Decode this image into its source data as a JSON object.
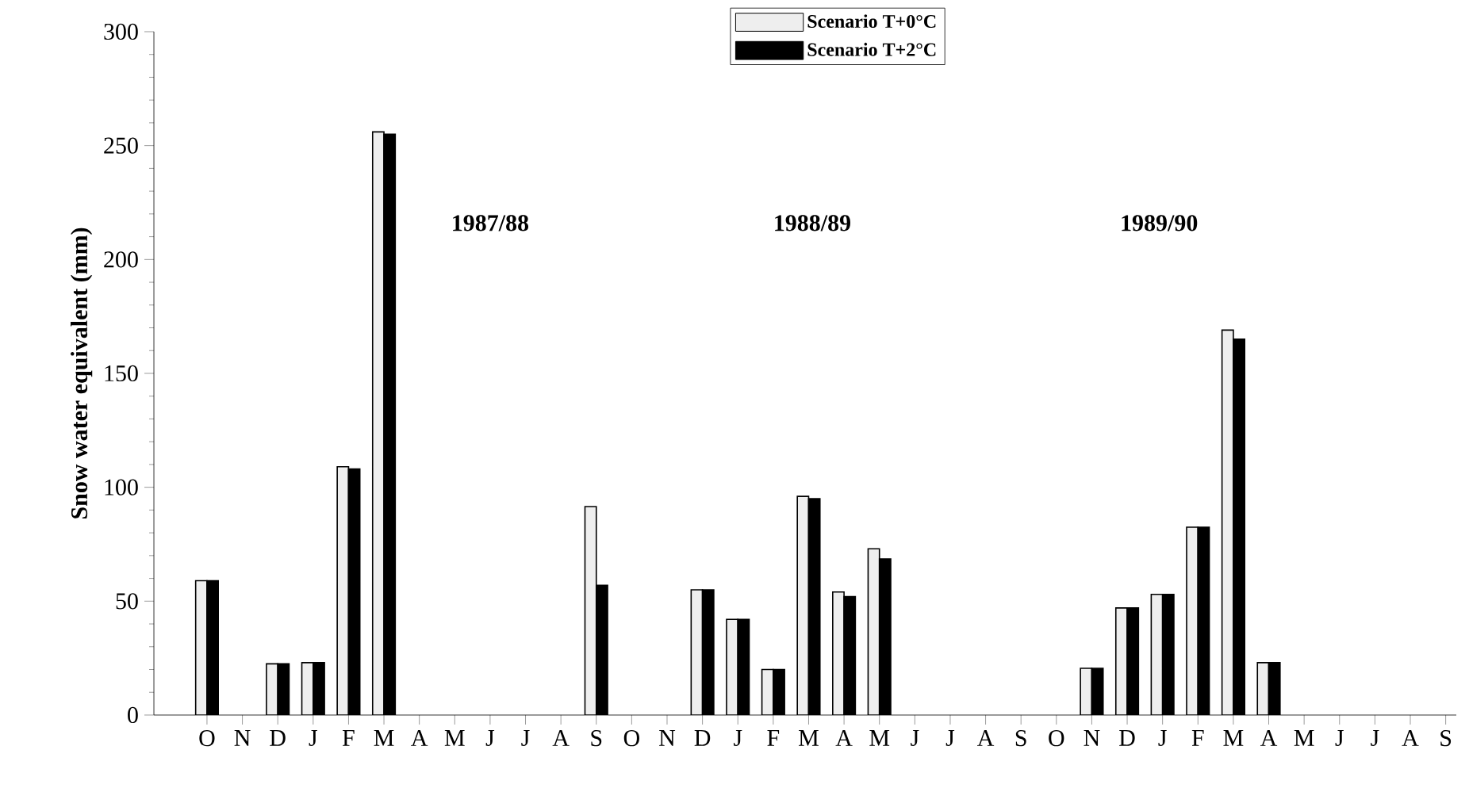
{
  "chart_data": {
    "type": "bar",
    "ylabel": "Snow water equivalent (mm)",
    "categories": [
      "O",
      "N",
      "D",
      "J",
      "F",
      "M",
      "A",
      "M",
      "J",
      "J",
      "A",
      "S",
      "O",
      "N",
      "D",
      "J",
      "F",
      "M",
      "A",
      "M",
      "J",
      "J",
      "A",
      "S",
      "O",
      "N",
      "D",
      "J",
      "F",
      "M",
      "A",
      "M",
      "J",
      "J",
      "A",
      "S"
    ],
    "series": [
      {
        "name": "Scenario T+0°C",
        "color": "#eeeeee",
        "values": [
          59,
          0,
          22.5,
          23,
          109,
          256,
          0,
          0,
          0,
          0,
          0,
          91.5,
          0,
          0,
          55,
          42,
          20,
          96,
          54,
          73,
          0,
          0,
          0,
          0,
          0,
          20.5,
          47,
          53,
          82.5,
          169,
          23,
          0,
          0,
          0,
          0,
          0
        ]
      },
      {
        "name": "Scenario T+2°C",
        "color": "#000000",
        "values": [
          59,
          0,
          22.5,
          23,
          108,
          255,
          0,
          0,
          0,
          0,
          0,
          57,
          0,
          0,
          55,
          42,
          20,
          95,
          52,
          68.5,
          0,
          0,
          0,
          0,
          0,
          20.5,
          47,
          53,
          82.5,
          165,
          23,
          0,
          0,
          0,
          0,
          0
        ]
      }
    ],
    "annotations": [
      "1987/88",
      "1988/89",
      "1989/90"
    ],
    "ylim": [
      0,
      300
    ],
    "yticks": [
      0,
      50,
      100,
      150,
      200,
      250,
      300
    ],
    "grid": false,
    "legend": "top"
  }
}
